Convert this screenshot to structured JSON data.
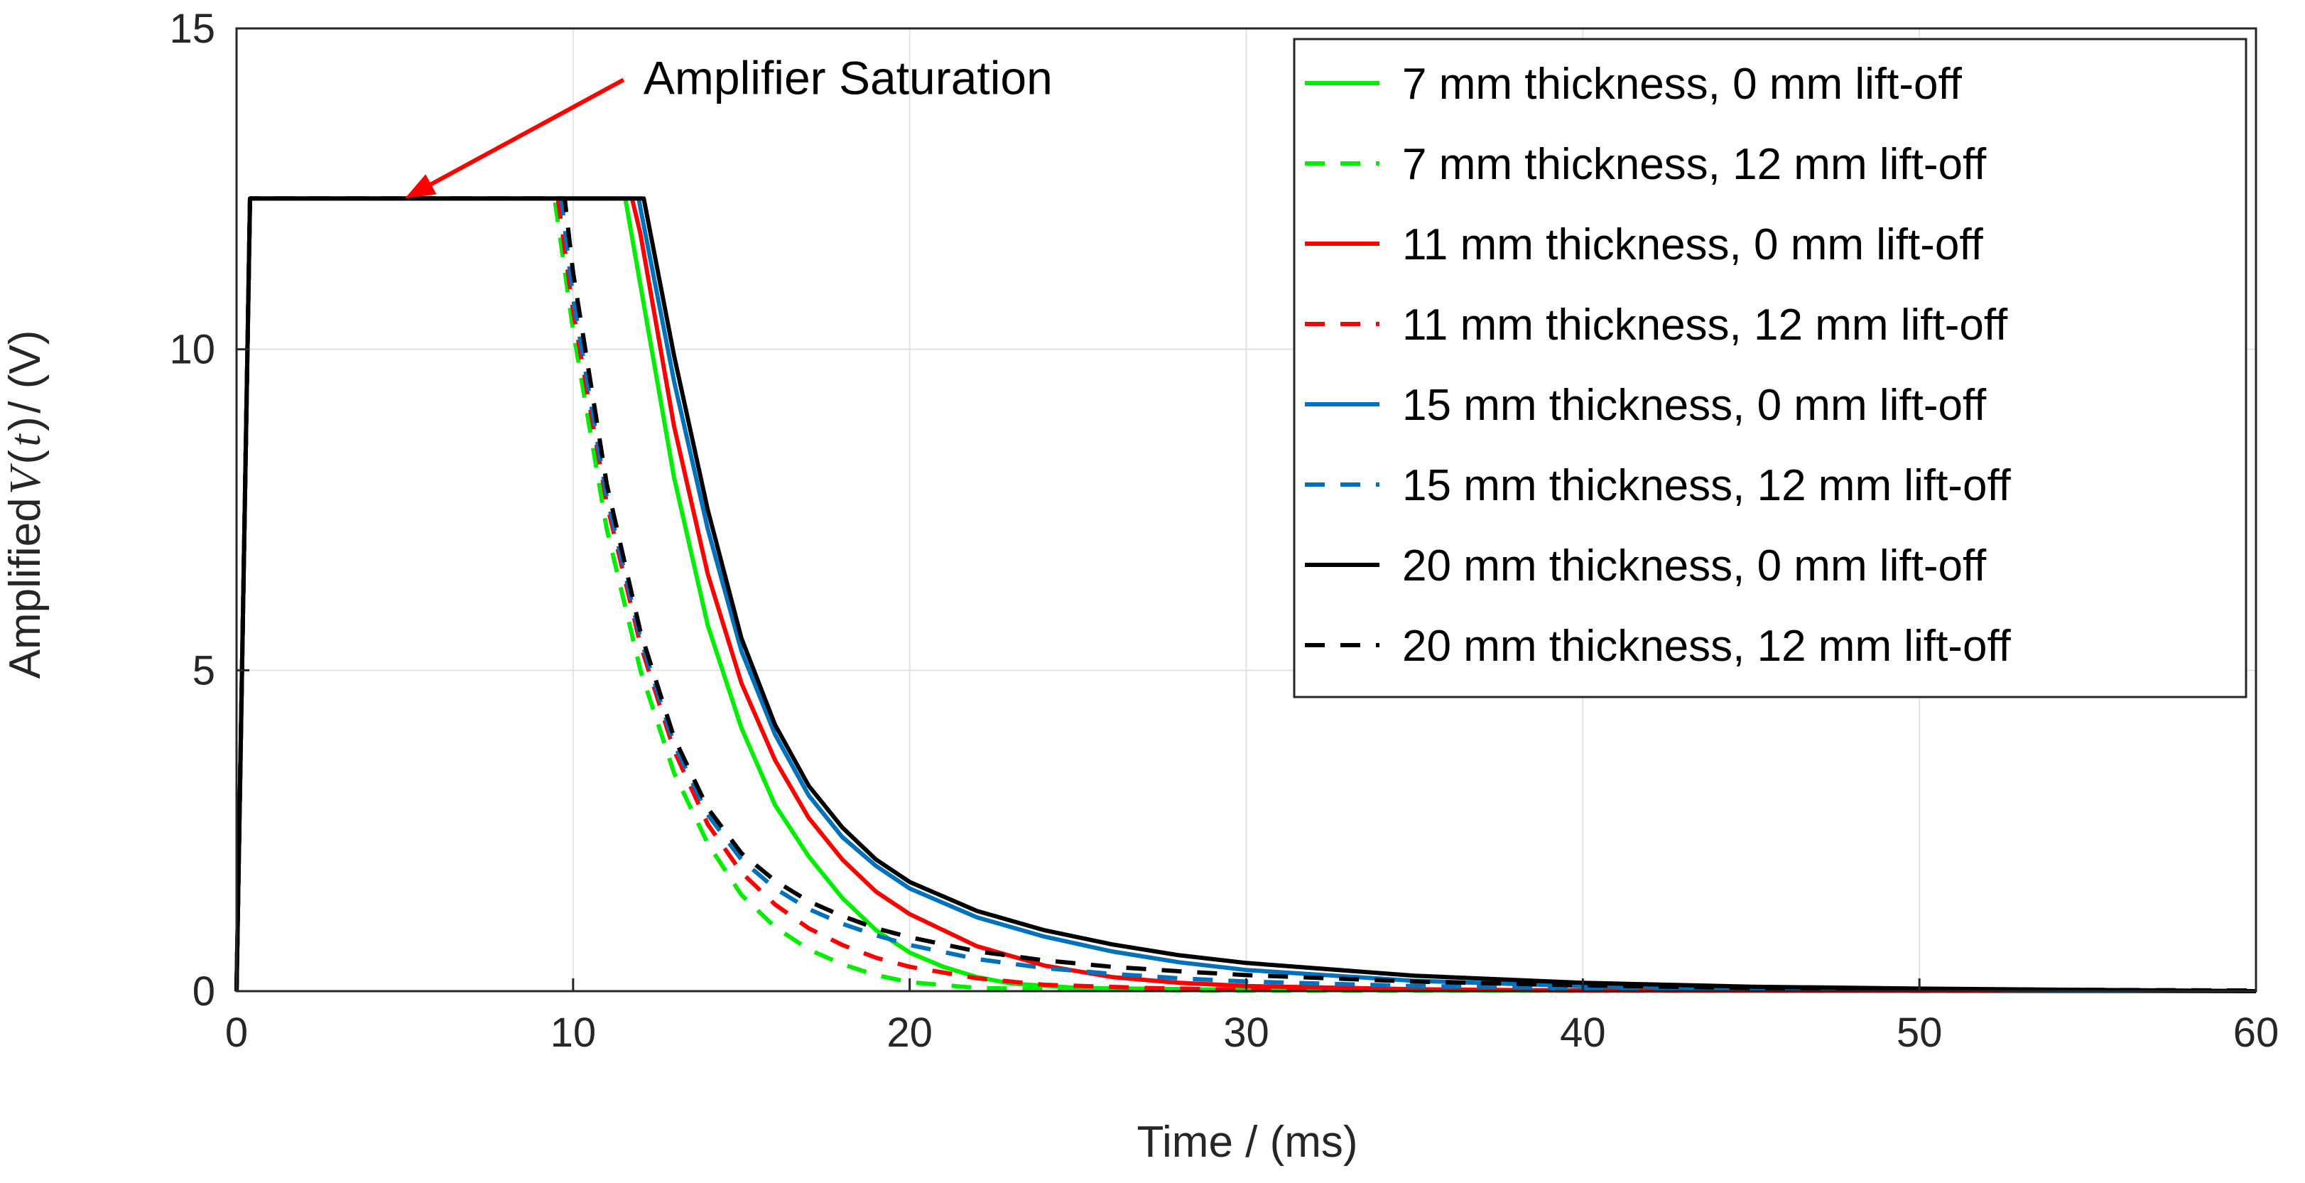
{
  "chart_data": {
    "type": "line",
    "title": "",
    "xlabel": "Time / (ms)",
    "ylabel": {
      "prefix": "Amplified",
      "symbol": "V",
      "open": "(",
      "arg": "t",
      "close": ")",
      "suffix": " / (V)"
    },
    "xlim": [
      0,
      60
    ],
    "ylim": [
      0,
      15
    ],
    "xticks": [
      0,
      10,
      20,
      30,
      40,
      50,
      60
    ],
    "yticks": [
      0,
      5,
      10,
      15
    ],
    "grid": true,
    "legend_position": "top-right",
    "annotation": {
      "text": "Amplifier Saturation",
      "arrow_from": [
        11.5,
        14.2
      ],
      "arrow_to": [
        5.0,
        12.35
      ]
    },
    "saturation_level": 12.35,
    "series": [
      {
        "name": "7 mm thickness, 0 mm lift-off",
        "color": "#00ee00",
        "dash": "solid",
        "points": [
          [
            0,
            0
          ],
          [
            0.4,
            12.35
          ],
          [
            11.55,
            12.35
          ],
          [
            12,
            11.0
          ],
          [
            13,
            8.0
          ],
          [
            14,
            5.7
          ],
          [
            15,
            4.1
          ],
          [
            16,
            2.9
          ],
          [
            17,
            2.1
          ],
          [
            18,
            1.45
          ],
          [
            19,
            0.95
          ],
          [
            20,
            0.6
          ],
          [
            21,
            0.38
          ],
          [
            22,
            0.22
          ],
          [
            23,
            0.12
          ],
          [
            25,
            0.05
          ],
          [
            30,
            0.02
          ],
          [
            40,
            0.01
          ],
          [
            60,
            0.0
          ]
        ]
      },
      {
        "name": "7 mm thickness, 12 mm lift-off",
        "color": "#00ee00",
        "dash": "dashed",
        "points": [
          [
            0,
            0
          ],
          [
            0.4,
            12.35
          ],
          [
            9.45,
            12.35
          ],
          [
            10,
            10.3
          ],
          [
            11,
            7.2
          ],
          [
            12,
            5.0
          ],
          [
            13,
            3.4
          ],
          [
            14,
            2.3
          ],
          [
            15,
            1.5
          ],
          [
            16,
            1.0
          ],
          [
            17,
            0.65
          ],
          [
            18,
            0.42
          ],
          [
            19,
            0.25
          ],
          [
            20,
            0.14
          ],
          [
            22,
            0.05
          ],
          [
            25,
            0.02
          ],
          [
            30,
            0.01
          ],
          [
            60,
            0.0
          ]
        ]
      },
      {
        "name": "11 mm thickness, 0 mm lift-off",
        "color": "#ff0000",
        "dash": "solid",
        "points": [
          [
            0,
            0
          ],
          [
            0.4,
            12.35
          ],
          [
            11.75,
            12.35
          ],
          [
            12,
            11.8
          ],
          [
            13,
            8.8
          ],
          [
            14,
            6.5
          ],
          [
            15,
            4.8
          ],
          [
            16,
            3.6
          ],
          [
            17,
            2.7
          ],
          [
            18,
            2.05
          ],
          [
            19,
            1.55
          ],
          [
            20,
            1.2
          ],
          [
            22,
            0.7
          ],
          [
            24,
            0.4
          ],
          [
            26,
            0.22
          ],
          [
            28,
            0.13
          ],
          [
            30,
            0.08
          ],
          [
            35,
            0.03
          ],
          [
            40,
            0.01
          ],
          [
            60,
            0.0
          ]
        ]
      },
      {
        "name": "11 mm thickness, 12 mm lift-off",
        "color": "#ff0000",
        "dash": "dashed",
        "points": [
          [
            0,
            0
          ],
          [
            0.4,
            12.35
          ],
          [
            9.55,
            12.35
          ],
          [
            10,
            10.6
          ],
          [
            11,
            7.6
          ],
          [
            12,
            5.4
          ],
          [
            13,
            3.75
          ],
          [
            14,
            2.6
          ],
          [
            15,
            1.85
          ],
          [
            16,
            1.35
          ],
          [
            17,
            0.98
          ],
          [
            18,
            0.72
          ],
          [
            19,
            0.52
          ],
          [
            20,
            0.38
          ],
          [
            22,
            0.2
          ],
          [
            24,
            0.1
          ],
          [
            27,
            0.05
          ],
          [
            30,
            0.02
          ],
          [
            60,
            0.0
          ]
        ]
      },
      {
        "name": "15 mm thickness, 0 mm lift-off",
        "color": "#0072bd",
        "dash": "solid",
        "points": [
          [
            0,
            0
          ],
          [
            0.4,
            12.35
          ],
          [
            11.95,
            12.35
          ],
          [
            12,
            12.2
          ],
          [
            13,
            9.5
          ],
          [
            14,
            7.2
          ],
          [
            15,
            5.3
          ],
          [
            16,
            4.0
          ],
          [
            17,
            3.05
          ],
          [
            18,
            2.4
          ],
          [
            19,
            1.95
          ],
          [
            20,
            1.6
          ],
          [
            22,
            1.15
          ],
          [
            24,
            0.85
          ],
          [
            26,
            0.62
          ],
          [
            28,
            0.45
          ],
          [
            30,
            0.33
          ],
          [
            35,
            0.16
          ],
          [
            40,
            0.08
          ],
          [
            45,
            0.04
          ],
          [
            50,
            0.02
          ],
          [
            60,
            0.0
          ]
        ]
      },
      {
        "name": "15 mm thickness, 12 mm lift-off",
        "color": "#0072bd",
        "dash": "dashed",
        "points": [
          [
            0,
            0
          ],
          [
            0.4,
            12.35
          ],
          [
            9.65,
            12.35
          ],
          [
            10,
            10.8
          ],
          [
            11,
            7.7
          ],
          [
            12,
            5.5
          ],
          [
            13,
            3.85
          ],
          [
            14,
            2.75
          ],
          [
            15,
            2.05
          ],
          [
            16,
            1.6
          ],
          [
            17,
            1.28
          ],
          [
            18,
            1.05
          ],
          [
            19,
            0.87
          ],
          [
            20,
            0.72
          ],
          [
            22,
            0.5
          ],
          [
            24,
            0.36
          ],
          [
            26,
            0.27
          ],
          [
            28,
            0.2
          ],
          [
            30,
            0.15
          ],
          [
            35,
            0.08
          ],
          [
            40,
            0.05
          ],
          [
            50,
            0.02
          ],
          [
            60,
            0.0
          ]
        ]
      },
      {
        "name": "20 mm thickness, 0 mm lift-off",
        "color": "#000000",
        "dash": "solid",
        "points": [
          [
            0,
            0
          ],
          [
            0.4,
            12.35
          ],
          [
            12.1,
            12.35
          ],
          [
            13,
            9.9
          ],
          [
            14,
            7.5
          ],
          [
            15,
            5.5
          ],
          [
            16,
            4.15
          ],
          [
            17,
            3.2
          ],
          [
            18,
            2.55
          ],
          [
            19,
            2.05
          ],
          [
            20,
            1.7
          ],
          [
            22,
            1.25
          ],
          [
            24,
            0.95
          ],
          [
            26,
            0.73
          ],
          [
            28,
            0.56
          ],
          [
            30,
            0.44
          ],
          [
            35,
            0.24
          ],
          [
            40,
            0.13
          ],
          [
            45,
            0.07
          ],
          [
            50,
            0.04
          ],
          [
            55,
            0.02
          ],
          [
            60,
            0.0
          ]
        ]
      },
      {
        "name": "20 mm thickness, 12 mm lift-off",
        "color": "#000000",
        "dash": "dashed",
        "points": [
          [
            0,
            0
          ],
          [
            0.4,
            12.35
          ],
          [
            9.75,
            12.35
          ],
          [
            10,
            11.2
          ],
          [
            11,
            7.9
          ],
          [
            12,
            5.6
          ],
          [
            13,
            3.95
          ],
          [
            14,
            2.85
          ],
          [
            15,
            2.15
          ],
          [
            16,
            1.72
          ],
          [
            17,
            1.4
          ],
          [
            18,
            1.17
          ],
          [
            19,
            0.98
          ],
          [
            20,
            0.84
          ],
          [
            22,
            0.62
          ],
          [
            24,
            0.48
          ],
          [
            26,
            0.38
          ],
          [
            28,
            0.31
          ],
          [
            30,
            0.25
          ],
          [
            35,
            0.15
          ],
          [
            40,
            0.09
          ],
          [
            45,
            0.05
          ],
          [
            50,
            0.03
          ],
          [
            60,
            0.01
          ]
        ]
      }
    ]
  }
}
